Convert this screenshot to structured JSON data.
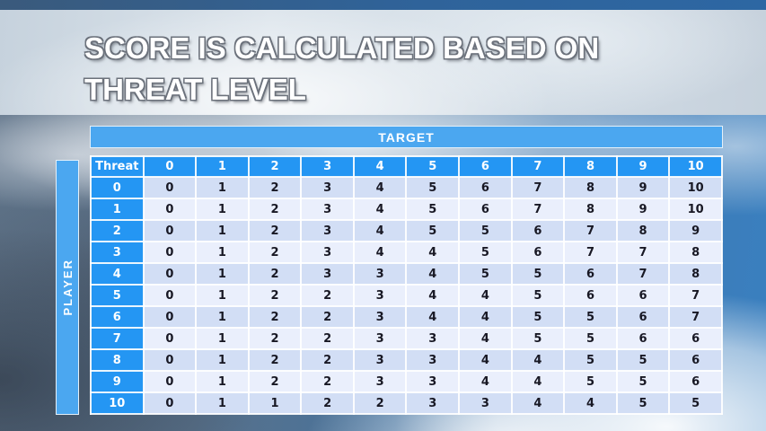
{
  "slide": {
    "title_lines": [
      "SCORE IS CALCULATED BASED ON",
      "THREAT LEVEL"
    ]
  },
  "chart_data": {
    "type": "table",
    "title": "SCORE IS CALCULATED BASED ON THREAT LEVEL",
    "column_axis_label": "TARGET",
    "row_axis_label": "PLAYER",
    "corner_label": "Threat",
    "columns": [
      "0",
      "1",
      "2",
      "3",
      "4",
      "5",
      "6",
      "7",
      "8",
      "9",
      "10"
    ],
    "rows": [
      {
        "threat": "0",
        "values": [
          "0",
          "1",
          "2",
          "3",
          "4",
          "5",
          "6",
          "7",
          "8",
          "9",
          "10"
        ]
      },
      {
        "threat": "1",
        "values": [
          "0",
          "1",
          "2",
          "3",
          "4",
          "5",
          "6",
          "7",
          "8",
          "9",
          "10"
        ]
      },
      {
        "threat": "2",
        "values": [
          "0",
          "1",
          "2",
          "3",
          "4",
          "5",
          "5",
          "6",
          "7",
          "8",
          "9"
        ]
      },
      {
        "threat": "3",
        "values": [
          "0",
          "1",
          "2",
          "3",
          "4",
          "4",
          "5",
          "6",
          "7",
          "7",
          "8"
        ]
      },
      {
        "threat": "4",
        "values": [
          "0",
          "1",
          "2",
          "3",
          "3",
          "4",
          "5",
          "5",
          "6",
          "7",
          "8"
        ]
      },
      {
        "threat": "5",
        "values": [
          "0",
          "1",
          "2",
          "2",
          "3",
          "4",
          "4",
          "5",
          "6",
          "6",
          "7"
        ]
      },
      {
        "threat": "6",
        "values": [
          "0",
          "1",
          "2",
          "2",
          "3",
          "4",
          "4",
          "5",
          "5",
          "6",
          "7"
        ]
      },
      {
        "threat": "7",
        "values": [
          "0",
          "1",
          "2",
          "2",
          "3",
          "3",
          "4",
          "5",
          "5",
          "6",
          "6"
        ]
      },
      {
        "threat": "8",
        "values": [
          "0",
          "1",
          "2",
          "2",
          "3",
          "3",
          "4",
          "4",
          "5",
          "5",
          "6"
        ]
      },
      {
        "threat": "9",
        "values": [
          "0",
          "1",
          "2",
          "2",
          "3",
          "3",
          "4",
          "4",
          "5",
          "5",
          "6"
        ]
      },
      {
        "threat": "10",
        "values": [
          "0",
          "1",
          "1",
          "2",
          "2",
          "3",
          "3",
          "4",
          "4",
          "5",
          "5"
        ]
      }
    ]
  },
  "colors": {
    "header_blue": "#2496f3",
    "banner_blue": "#4ba7f0",
    "row_even": "#d2def5",
    "row_odd": "#eaeffc",
    "cell_text": "#181824",
    "title_text": "#ffffff"
  }
}
